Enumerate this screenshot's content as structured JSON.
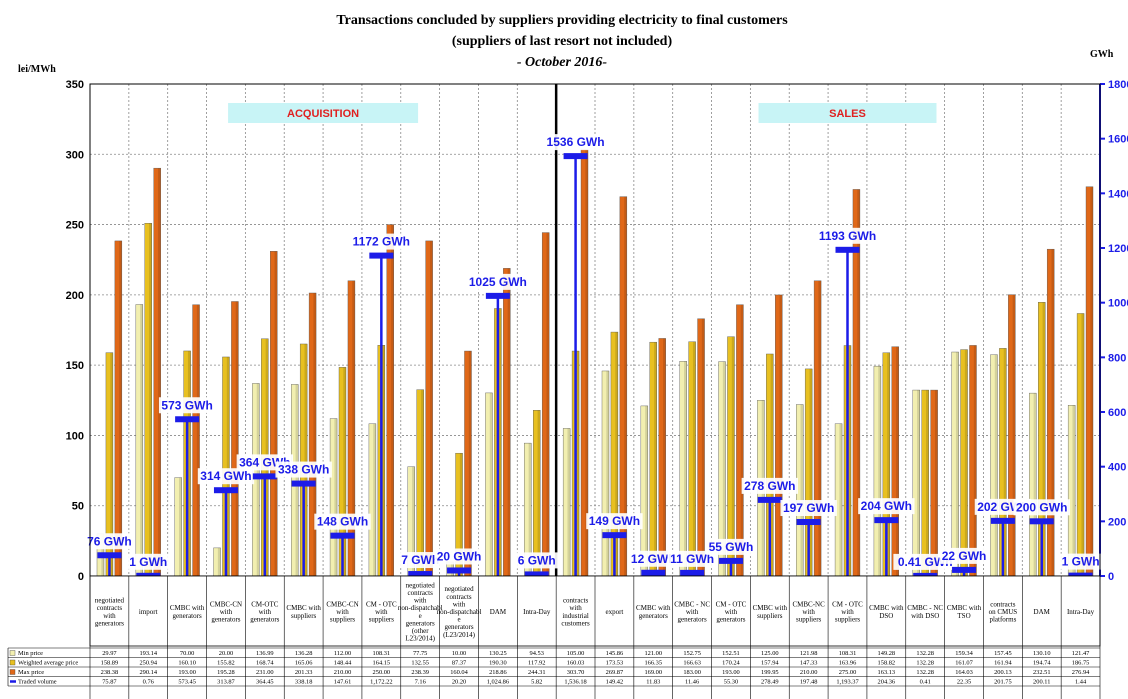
{
  "chart_data": {
    "type": "bar",
    "title": "Transactions concluded by suppliers providing electricity to final customers",
    "subtitle": "(suppliers of last resort not included)",
    "period": "- October 2016-",
    "ylabel_left": "lei/MWh",
    "ylabel_right": "GWh",
    "ylim_left": [
      0,
      350
    ],
    "yticks_left": [
      0,
      50,
      100,
      150,
      200,
      250,
      300,
      350
    ],
    "ylim_right": [
      0,
      1800
    ],
    "yticks_right": [
      0,
      200,
      400,
      600,
      800,
      1000,
      1200,
      1400,
      1600,
      1800
    ],
    "grid": true,
    "groups": [
      {
        "label": "ACQUISITION",
        "start": 0,
        "end": 12
      },
      {
        "label": "SALES",
        "start": 12,
        "end": 27
      }
    ],
    "categories": [
      "negotiated contracts with generators",
      "import",
      "CMBC with generators",
      "CMBC-CN with generators",
      "CM-OTC with generators",
      "CMBC with suppliers",
      "CMBC-CN with suppliers",
      "CM - OTC with suppliers",
      "negotiated contracts with non-dispatchabl e generators (other L23/2014)",
      "negotiated contracts with non-dispatchabl e generators (L23/2014)",
      "DAM",
      "Intra-Day",
      "contracts with industrial customers",
      "export",
      "CMBC with generators",
      "CMBC - NC with generators",
      "CM - OTC with generators",
      "CMBC with suppliers",
      "CMBC-NC with suppliers",
      "CM - OTC with suppliers",
      "CMBC with DSO",
      "CMBC - NC with DSO",
      "CMBC with TSO",
      "contracts on CMUS platforms",
      "DAM",
      "Intra-Day"
    ],
    "series": [
      {
        "name": "Min price",
        "color": "#f2efb0",
        "values": [
          29.97,
          193.14,
          70.0,
          20.0,
          136.99,
          136.28,
          112.0,
          108.31,
          77.75,
          10.0,
          130.25,
          94.53,
          105.0,
          145.86,
          121.0,
          152.75,
          152.51,
          125.0,
          121.98,
          108.31,
          149.28,
          132.28,
          159.34,
          157.45,
          130.1,
          121.47
        ]
      },
      {
        "name": "Weighted average price",
        "color": "#e8c020",
        "values": [
          158.89,
          250.94,
          160.1,
          155.82,
          168.74,
          165.06,
          148.44,
          164.15,
          132.55,
          87.37,
          190.3,
          117.92,
          160.03,
          173.53,
          166.35,
          166.63,
          170.24,
          157.94,
          147.33,
          163.96,
          158.82,
          132.28,
          161.07,
          161.94,
          194.74,
          186.75
        ]
      },
      {
        "name": "Max price",
        "color": "#e06818",
        "values": [
          238.38,
          290.14,
          193.0,
          195.28,
          231.0,
          201.33,
          210.0,
          250.0,
          238.39,
          160.04,
          218.86,
          244.31,
          303.7,
          269.87,
          169.0,
          183.0,
          193.0,
          199.95,
          210.0,
          275.0,
          163.13,
          132.28,
          164.03,
          200.13,
          232.51,
          276.94
        ]
      }
    ],
    "volume_series": {
      "name": "Traded volume",
      "color": "#1c1ce8",
      "values": [
        75.87,
        0.76,
        573.45,
        313.87,
        364.45,
        338.18,
        147.61,
        1172.22,
        7.16,
        20.2,
        1024.86,
        5.82,
        1536.18,
        149.42,
        11.83,
        11.46,
        55.3,
        278.49,
        197.48,
        1193.37,
        204.36,
        0.41,
        22.35,
        201.75,
        200.11,
        1.44
      ]
    },
    "volume_labels": [
      "76 GWh",
      "1 GWh",
      "573 GWh",
      "314 GWh",
      "364 GWh",
      "338 GWh",
      "148 GWh",
      "1172 GWh",
      "7 GWh",
      "20 GWh",
      "1025 GWh",
      "6 GWh",
      "1536 GWh",
      "149 GWh",
      "12 GWh",
      "11 GWh",
      "55 GWh",
      "278 GWh",
      "197 GWh",
      "1193 GWh",
      "204 GWh",
      "0.41 GWh",
      "22 GWh",
      "202 GWh",
      "200 GWh",
      "1 GWh"
    ],
    "table": {
      "rows": [
        {
          "name": "Min price",
          "cells": [
            "29.97",
            "193.14",
            "70.00",
            "20.00",
            "136.99",
            "136.28",
            "112.00",
            "108.31",
            "77.75",
            "10.00",
            "130.25",
            "94.53",
            "105.00",
            "145.86",
            "121.00",
            "152.75",
            "152.51",
            "125.00",
            "121.98",
            "108.31",
            "149.28",
            "132.28",
            "159.34",
            "157.45",
            "130.10",
            "121.47"
          ]
        },
        {
          "name": "Weighted average price",
          "cells": [
            "158.89",
            "250.94",
            "160.10",
            "155.82",
            "168.74",
            "165.06",
            "148.44",
            "164.15",
            "132.55",
            "87.37",
            "190.30",
            "117.92",
            "160.03",
            "173.53",
            "166.35",
            "166.63",
            "170.24",
            "157.94",
            "147.33",
            "163.96",
            "158.82",
            "132.28",
            "161.07",
            "161.94",
            "194.74",
            "186.75"
          ]
        },
        {
          "name": "Max price",
          "cells": [
            "238.38",
            "290.14",
            "193.00",
            "195.28",
            "231.00",
            "201.33",
            "210.00",
            "250.00",
            "238.39",
            "160.04",
            "218.86",
            "244.31",
            "303.70",
            "269.87",
            "169.00",
            "183.00",
            "193.00",
            "199.95",
            "210.00",
            "275.00",
            "163.13",
            "132.28",
            "164.03",
            "200.13",
            "232.51",
            "276.94"
          ]
        },
        {
          "name": "Traded volume",
          "cells": [
            "75.87",
            "0.76",
            "573.45",
            "313.87",
            "364.45",
            "338.18",
            "147.61",
            "1,172.22",
            "7.16",
            "20.20",
            "1,024.86",
            "5.82",
            "1,536.18",
            "149.42",
            "11.83",
            "11.46",
            "55.30",
            "278.49",
            "197.48",
            "1,193.37",
            "204.36",
            "0.41",
            "22.35",
            "201.75",
            "200.11",
            "1.44"
          ]
        }
      ]
    }
  }
}
